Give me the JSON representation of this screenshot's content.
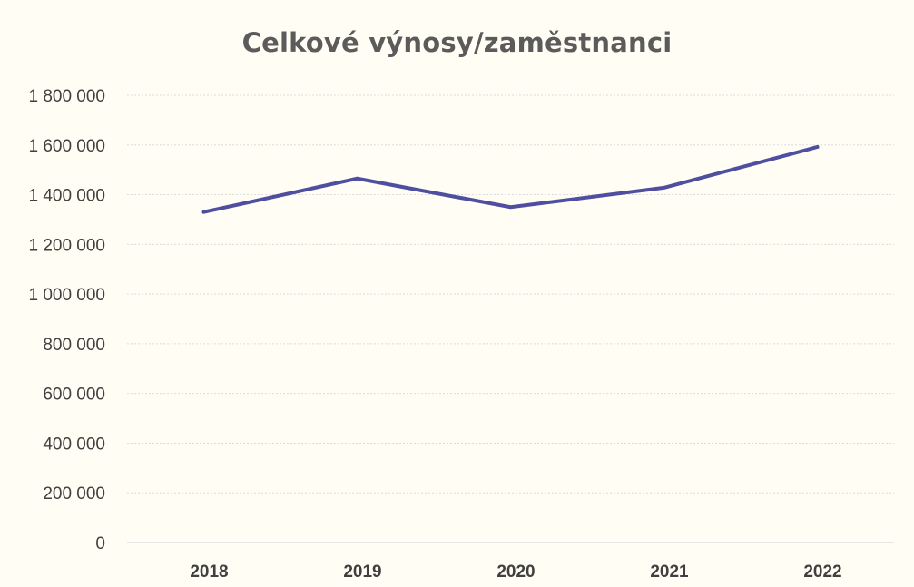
{
  "chart_data": {
    "type": "line",
    "title": "Celkové výnosy/zaměstnanci",
    "xlabel": "",
    "ylabel": "",
    "categories": [
      "2018",
      "2019",
      "2020",
      "2021",
      "2022"
    ],
    "series": [
      {
        "values": [
          1330000,
          1465000,
          1350000,
          1428000,
          1592000
        ]
      }
    ],
    "ylim": [
      0,
      1800000
    ],
    "yticks": [
      "0",
      "200 000",
      "400 000",
      "600 000",
      "800 000",
      "1 000 000",
      "1 200 000",
      "1 400 000",
      "1 600 000",
      "1 800 000"
    ],
    "ytick_values": [
      0,
      200000,
      400000,
      600000,
      800000,
      1000000,
      1200000,
      1400000,
      1600000,
      1800000
    ],
    "grid": true,
    "legend": "none",
    "colors": {
      "line": "#4e4fa0",
      "grid": "#dcdcdc",
      "text": "#404040",
      "title": "#5b5b5b"
    }
  }
}
